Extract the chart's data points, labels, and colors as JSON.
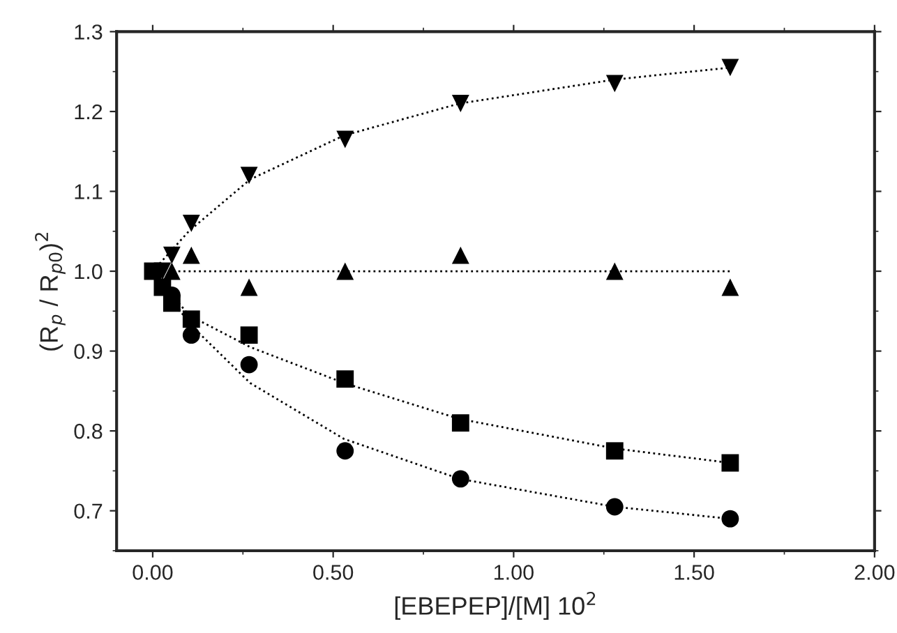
{
  "chart_data": {
    "type": "scatter",
    "xlabel": "[EBEPEP]/[M] 10$^{2}$",
    "ylabel": "(R$_{p}$ / R$_{p0}$)$^{2}$",
    "x": [
      0,
      0.027,
      0.053,
      0.107,
      0.267,
      0.533,
      0.853,
      1.28,
      1.6
    ],
    "series": [
      {
        "marker": "triangle_down",
        "color": "#000000",
        "values": [
          null,
          1.0,
          1.02,
          1.06,
          1.12,
          1.165,
          1.21,
          1.235,
          1.255
        ]
      },
      {
        "marker": "triangle",
        "color": "#000000",
        "values": [
          null,
          null,
          1.0,
          1.02,
          0.98,
          1.0,
          1.02,
          1.0,
          0.98
        ]
      },
      {
        "marker": "square",
        "color": "#000000",
        "values": [
          1.0,
          0.98,
          0.96,
          0.94,
          0.92,
          0.865,
          0.81,
          0.775,
          0.76
        ]
      },
      {
        "marker": "circle",
        "color": "#000000",
        "values": [
          null,
          null,
          0.97,
          0.92,
          0.883,
          0.775,
          0.74,
          0.705,
          0.69
        ]
      },
      {
        "type": "line",
        "line_style": "dotted",
        "marker": "none",
        "color": "#000000",
        "x": [
          0,
          0.1,
          0.27,
          0.53,
          0.85,
          1.28,
          1.6
        ],
        "values": [
          1.0,
          1.05,
          1.115,
          1.17,
          1.21,
          1.24,
          1.255
        ]
      },
      {
        "type": "line",
        "line_style": "dotted",
        "marker": "none",
        "color": "#000000",
        "x": [
          0,
          1.6
        ],
        "values": [
          1.0,
          1.0
        ]
      },
      {
        "type": "line",
        "line_style": "dotted",
        "marker": "none",
        "color": "#000000",
        "x": [
          0,
          0.1,
          0.27,
          0.53,
          0.85,
          1.28,
          1.6
        ],
        "values": [
          1.0,
          0.945,
          0.905,
          0.86,
          0.815,
          0.778,
          0.76
        ]
      },
      {
        "type": "line",
        "line_style": "dotted",
        "marker": "none",
        "color": "#000000",
        "x": [
          0,
          0.1,
          0.27,
          0.53,
          0.85,
          1.28,
          1.6
        ],
        "values": [
          1.0,
          0.935,
          0.86,
          0.79,
          0.74,
          0.705,
          0.69
        ]
      }
    ],
    "xlim": [
      -0.1,
      2.0
    ],
    "ylim": [
      0.65,
      1.3
    ],
    "xticks": [
      {
        "value": 0,
        "label": "0.00"
      },
      {
        "value": 0.5,
        "label": "0.50"
      },
      {
        "value": 1.0,
        "label": "1.00"
      },
      {
        "value": 1.5,
        "label": "1.50"
      },
      {
        "value": 2.0,
        "label": "2.00"
      }
    ],
    "yticks": [
      0.7,
      0.8,
      0.9,
      {
        "value": 1.0,
        "label": "1.0"
      },
      1.1,
      1.2,
      1.3
    ],
    "grid": false,
    "legend": false
  }
}
